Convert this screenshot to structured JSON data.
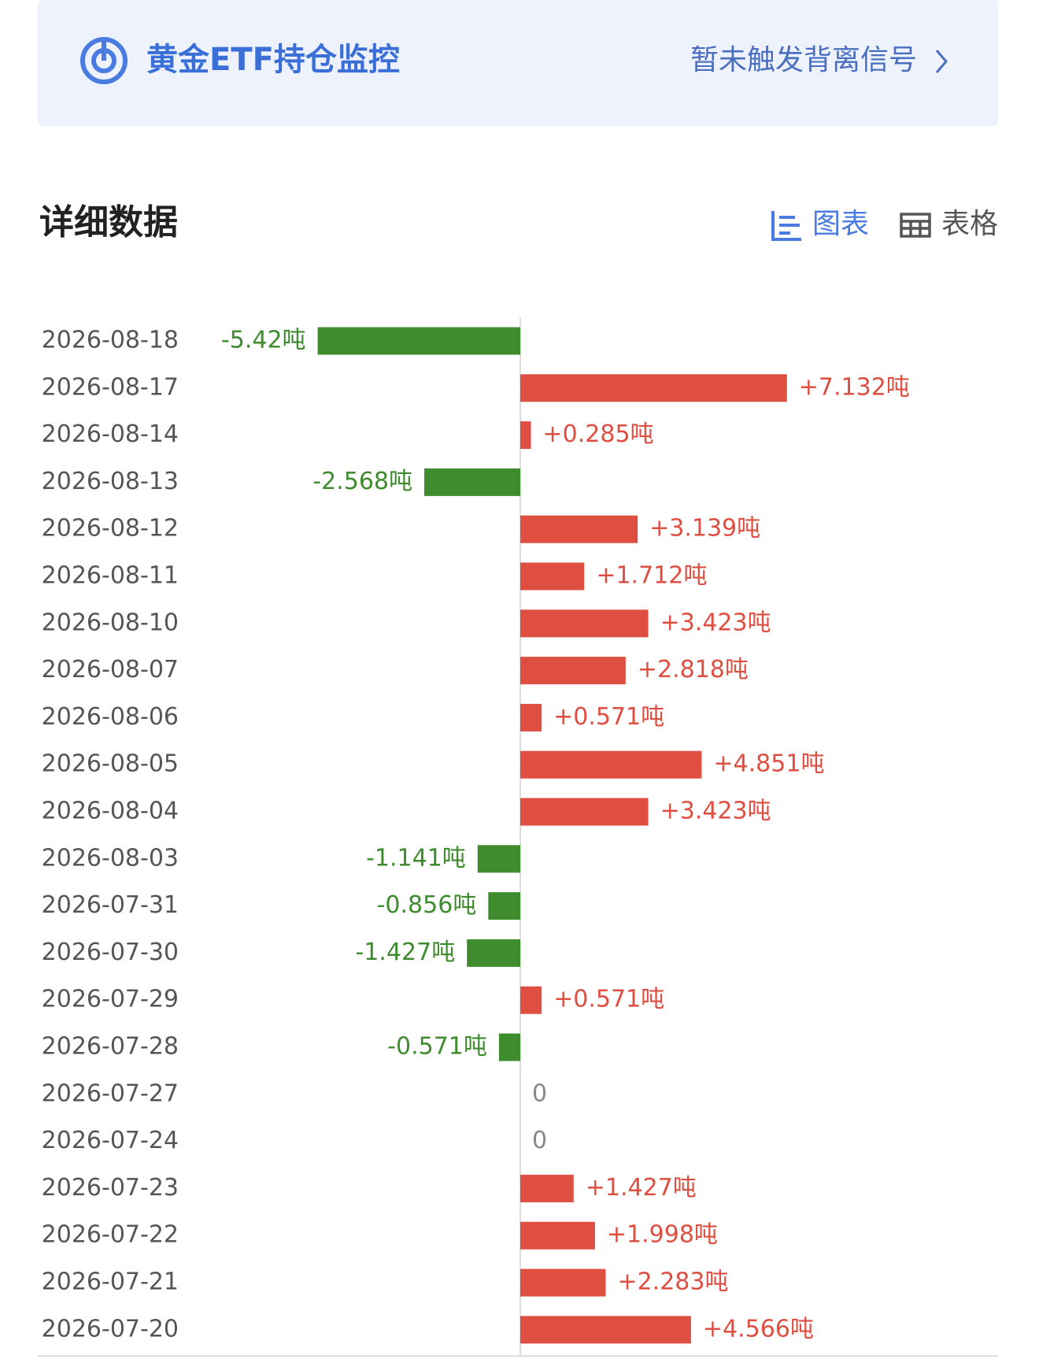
{
  "header": {
    "title": "黄金ETF持仓监控",
    "signal": "暂未触发背离信号"
  },
  "section": {
    "title": "详细数据",
    "tabs": [
      "图表",
      "表格"
    ]
  },
  "chart_data": {
    "type": "bar",
    "orientation": "horizontal",
    "categories": [
      "2026-08-18",
      "2026-08-17",
      "2026-08-14",
      "2026-08-13",
      "2026-08-12",
      "2026-08-11",
      "2026-08-10",
      "2026-08-07",
      "2026-08-06",
      "2026-08-05",
      "2026-08-04",
      "2026-08-03",
      "2026-07-31",
      "2026-07-30",
      "2026-07-29",
      "2026-07-28",
      "2026-07-27",
      "2026-07-24",
      "2026-07-23",
      "2026-07-22",
      "2026-07-21",
      "2026-07-20"
    ],
    "values": [
      -5.42,
      7.132,
      0.285,
      -2.568,
      3.139,
      1.712,
      3.423,
      2.818,
      0.571,
      4.851,
      3.423,
      -1.141,
      -0.856,
      -1.427,
      0.571,
      -0.571,
      0,
      0,
      1.427,
      1.998,
      2.283,
      4.566
    ],
    "value_labels": [
      "-5.42吨",
      "+7.132吨",
      "+0.285吨",
      "-2.568吨",
      "+3.139吨",
      "+1.712吨",
      "+3.423吨",
      "+2.818吨",
      "+0.571吨",
      "+4.851吨",
      "+3.423吨",
      "-1.141吨",
      "-0.856吨",
      "-1.427吨",
      "+0.571吨",
      "-0.571吨",
      "0",
      "0",
      "+1.427吨",
      "+1.998吨",
      "+2.283吨",
      "+4.566吨"
    ],
    "positive_color": "#de4f42",
    "negative_color": "#3f8c2f",
    "zero_label_color": "#888888"
  }
}
